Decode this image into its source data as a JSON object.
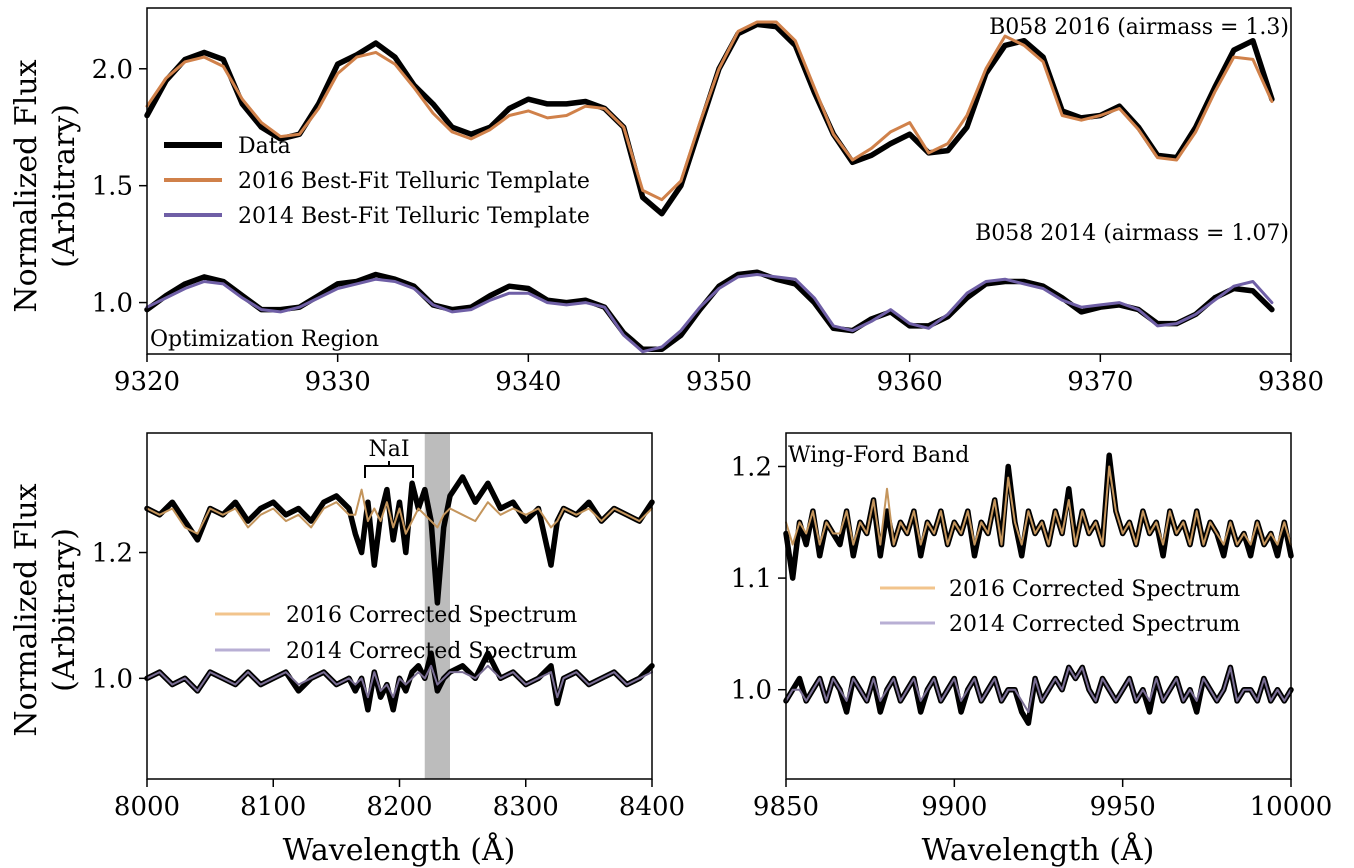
{
  "colors": {
    "data": "#000000",
    "template_2016": "#d0814a",
    "template_2014": "#6f5fa6",
    "corrected_2016": "#c4955c",
    "corrected_2016_legend": "#f2c48c",
    "corrected_2014": "#7a6e94",
    "corrected_2014_legend": "#b8afd4",
    "shade": "#b0b0b0"
  },
  "chart_data": [
    {
      "type": "line",
      "panel": "top",
      "ylabel_line1": "Normalized Flux",
      "ylabel_line2": "(Arbitrary)",
      "xlim": [
        9320,
        9380
      ],
      "ylim": [
        0.78,
        2.26
      ],
      "xticks": [
        "9320",
        "9330",
        "9340",
        "9350",
        "9360",
        "9370",
        "9380"
      ],
      "yticks": [
        "1.0",
        "1.5",
        "2.0"
      ],
      "annotations": {
        "label_2016": "B058 2016 (airmass = 1.3)",
        "label_2014": "B058 2014 (airmass = 1.07)",
        "region": "Optimization Region"
      },
      "legend": {
        "position": "center-left",
        "entries": [
          "Data",
          "2016 Best-Fit Telluric Template",
          "2014 Best-Fit Telluric Template"
        ]
      },
      "x": [
        9320,
        9321,
        9322,
        9323,
        9324,
        9325,
        9326,
        9327,
        9328,
        9329,
        9330,
        9331,
        9332,
        9333,
        9334,
        9335,
        9336,
        9337,
        9338,
        9339,
        9340,
        9341,
        9342,
        9343,
        9344,
        9345,
        9346,
        9347,
        9348,
        9349,
        9350,
        9351,
        9352,
        9353,
        9354,
        9355,
        9356,
        9357,
        9358,
        9359,
        9360,
        9361,
        9362,
        9363,
        9364,
        9365,
        9366,
        9367,
        9368,
        9369,
        9370,
        9371,
        9372,
        9373,
        9374,
        9375,
        9376,
        9377,
        9378,
        9379
      ],
      "series": [
        {
          "name": "Data",
          "role": "data-2016",
          "values": [
            1.8,
            1.95,
            2.04,
            2.07,
            2.04,
            1.85,
            1.75,
            1.7,
            1.72,
            1.85,
            2.02,
            2.06,
            2.11,
            2.05,
            1.93,
            1.85,
            1.75,
            1.72,
            1.75,
            1.83,
            1.87,
            1.85,
            1.85,
            1.86,
            1.83,
            1.75,
            1.45,
            1.38,
            1.5,
            1.75,
            2.0,
            2.15,
            2.19,
            2.18,
            2.1,
            1.9,
            1.72,
            1.6,
            1.63,
            1.68,
            1.72,
            1.64,
            1.65,
            1.75,
            1.98,
            2.1,
            2.12,
            2.05,
            1.82,
            1.79,
            1.8,
            1.84,
            1.75,
            1.63,
            1.62,
            1.75,
            1.92,
            2.08,
            2.12,
            1.87
          ]
        },
        {
          "name": "2016 Best-Fit Telluric Template",
          "role": "template-2016",
          "values": [
            1.84,
            1.96,
            2.03,
            2.05,
            2.01,
            1.87,
            1.77,
            1.71,
            1.72,
            1.83,
            1.98,
            2.05,
            2.07,
            2.02,
            1.92,
            1.81,
            1.73,
            1.7,
            1.74,
            1.8,
            1.82,
            1.79,
            1.8,
            1.84,
            1.83,
            1.75,
            1.48,
            1.44,
            1.52,
            1.77,
            2.0,
            2.16,
            2.2,
            2.2,
            2.12,
            1.92,
            1.72,
            1.61,
            1.66,
            1.73,
            1.77,
            1.64,
            1.68,
            1.8,
            2.0,
            2.14,
            2.1,
            2.03,
            1.8,
            1.78,
            1.8,
            1.83,
            1.74,
            1.62,
            1.61,
            1.73,
            1.9,
            2.05,
            2.04,
            1.86
          ]
        },
        {
          "name": "Data",
          "role": "data-2014",
          "values": [
            0.97,
            1.03,
            1.08,
            1.11,
            1.09,
            1.03,
            0.97,
            0.97,
            0.98,
            1.03,
            1.08,
            1.09,
            1.12,
            1.1,
            1.07,
            0.99,
            0.97,
            0.98,
            1.03,
            1.07,
            1.06,
            1.01,
            1.0,
            1.01,
            0.98,
            0.87,
            0.8,
            0.8,
            0.86,
            0.97,
            1.07,
            1.12,
            1.13,
            1.1,
            1.08,
            1.0,
            0.89,
            0.88,
            0.93,
            0.96,
            0.9,
            0.9,
            0.94,
            1.02,
            1.08,
            1.09,
            1.09,
            1.07,
            1.02,
            0.96,
            0.98,
            0.99,
            0.97,
            0.91,
            0.91,
            0.95,
            1.02,
            1.06,
            1.05,
            0.97
          ]
        },
        {
          "name": "2014 Best-Fit Telluric Template",
          "role": "template-2014",
          "values": [
            0.98,
            1.02,
            1.06,
            1.09,
            1.08,
            1.02,
            0.97,
            0.96,
            0.98,
            1.02,
            1.06,
            1.08,
            1.1,
            1.09,
            1.06,
            0.99,
            0.96,
            0.97,
            1.01,
            1.04,
            1.04,
            1.0,
            0.99,
            1.0,
            0.98,
            0.86,
            0.79,
            0.81,
            0.88,
            0.98,
            1.06,
            1.11,
            1.12,
            1.11,
            1.1,
            1.02,
            0.9,
            0.88,
            0.92,
            0.97,
            0.91,
            0.89,
            0.95,
            1.04,
            1.09,
            1.1,
            1.08,
            1.06,
            1.01,
            0.98,
            0.99,
            1.0,
            0.97,
            0.9,
            0.91,
            0.95,
            1.01,
            1.07,
            1.09,
            1.0
          ]
        }
      ]
    },
    {
      "type": "line",
      "panel": "bottom-left",
      "ylabel_line1": "Normalized Flux",
      "ylabel_line2": "(Arbitrary)",
      "xlabel": "Wavelength (Å)",
      "xlim": [
        8000,
        8400
      ],
      "ylim": [
        0.84,
        1.39
      ],
      "xticks": [
        "8000",
        "8100",
        "8200",
        "8300",
        "8400"
      ],
      "yticks": [
        "1.0",
        "1.2"
      ],
      "annotations": {
        "feature": "NaI"
      },
      "shaded_region": [
        8220,
        8240
      ],
      "legend": {
        "position": "center",
        "entries": [
          "2016 Corrected Spectrum",
          "2014 Corrected Spectrum"
        ]
      },
      "x": [
        8000,
        8010,
        8020,
        8030,
        8040,
        8050,
        8060,
        8070,
        8080,
        8090,
        8100,
        8110,
        8120,
        8130,
        8140,
        8150,
        8160,
        8165,
        8170,
        8175,
        8180,
        8185,
        8190,
        8195,
        8200,
        8205,
        8210,
        8215,
        8220,
        8225,
        8230,
        8235,
        8240,
        8250,
        8260,
        8270,
        8280,
        8290,
        8300,
        8310,
        8320,
        8325,
        8330,
        8340,
        8350,
        8360,
        8370,
        8380,
        8390,
        8400
      ],
      "series": [
        {
          "name": "Data",
          "role": "data-2016",
          "values": [
            1.27,
            1.26,
            1.28,
            1.25,
            1.22,
            1.27,
            1.26,
            1.28,
            1.25,
            1.27,
            1.28,
            1.26,
            1.27,
            1.25,
            1.28,
            1.29,
            1.27,
            1.23,
            1.2,
            1.28,
            1.18,
            1.26,
            1.3,
            1.22,
            1.28,
            1.2,
            1.31,
            1.27,
            1.3,
            1.25,
            1.12,
            1.24,
            1.29,
            1.32,
            1.28,
            1.31,
            1.27,
            1.28,
            1.25,
            1.27,
            1.18,
            1.25,
            1.27,
            1.26,
            1.28,
            1.25,
            1.27,
            1.26,
            1.25,
            1.28
          ]
        },
        {
          "name": "2016 Corrected Spectrum",
          "role": "corrected-2016",
          "values": [
            1.27,
            1.26,
            1.27,
            1.24,
            1.23,
            1.27,
            1.26,
            1.27,
            1.24,
            1.26,
            1.27,
            1.25,
            1.26,
            1.24,
            1.27,
            1.28,
            1.26,
            1.26,
            1.3,
            1.25,
            1.27,
            1.25,
            1.28,
            1.24,
            1.27,
            1.23,
            1.25,
            1.27,
            1.26,
            1.25,
            1.24,
            1.26,
            1.27,
            1.26,
            1.25,
            1.28,
            1.26,
            1.27,
            1.26,
            1.27,
            1.24,
            1.25,
            1.27,
            1.26,
            1.27,
            1.25,
            1.27,
            1.26,
            1.25,
            1.27
          ]
        },
        {
          "name": "Data",
          "role": "data-2014",
          "values": [
            1.0,
            1.01,
            0.99,
            1.0,
            0.98,
            1.01,
            1.0,
            0.99,
            1.01,
            0.99,
            1.0,
            1.01,
            0.98,
            1.0,
            1.01,
            0.99,
            1.0,
            0.98,
            1.0,
            0.95,
            1.01,
            0.97,
            0.99,
            0.95,
            1.0,
            0.98,
            1.01,
            1.02,
            1.0,
            1.04,
            0.98,
            1.0,
            1.01,
            1.02,
            1.0,
            1.04,
            1.0,
            1.01,
            0.99,
            1.0,
            1.02,
            0.96,
            1.0,
            1.01,
            0.99,
            1.0,
            1.01,
            0.99,
            1.0,
            1.02
          ]
        },
        {
          "name": "2014 Corrected Spectrum",
          "role": "corrected-2014",
          "values": [
            1.0,
            1.01,
            0.99,
            1.0,
            0.98,
            1.01,
            1.0,
            0.99,
            1.01,
            0.99,
            1.0,
            1.01,
            0.99,
            1.0,
            1.01,
            0.99,
            1.0,
            0.99,
            1.0,
            0.97,
            1.01,
            0.98,
            0.99,
            0.97,
            1.0,
            0.99,
            1.0,
            1.01,
            1.0,
            1.02,
            0.99,
            1.0,
            1.01,
            1.01,
            1.0,
            1.02,
            1.0,
            1.01,
            0.99,
            1.0,
            1.01,
            0.97,
            1.0,
            1.01,
            0.99,
            1.0,
            1.01,
            0.99,
            1.0,
            1.01
          ]
        }
      ]
    },
    {
      "type": "line",
      "panel": "bottom-right",
      "xlabel": "Wavelength (Å)",
      "xlim": [
        9850,
        10000
      ],
      "ylim": [
        0.92,
        1.23
      ],
      "xticks": [
        "9850",
        "9900",
        "9950",
        "10000"
      ],
      "yticks": [
        "1.0",
        "1.1",
        "1.2"
      ],
      "annotations": {
        "band": "Wing-Ford Band"
      },
      "legend": {
        "position": "center-right",
        "entries": [
          "2016 Corrected Spectrum",
          "2014 Corrected Spectrum"
        ]
      },
      "x": [
        9850,
        9852,
        9854,
        9856,
        9858,
        9860,
        9862,
        9864,
        9866,
        9868,
        9870,
        9872,
        9874,
        9876,
        9878,
        9880,
        9882,
        9884,
        9886,
        9888,
        9890,
        9892,
        9894,
        9896,
        9898,
        9900,
        9902,
        9904,
        9906,
        9908,
        9910,
        9912,
        9914,
        9916,
        9918,
        9920,
        9922,
        9924,
        9926,
        9928,
        9930,
        9932,
        9934,
        9936,
        9938,
        9940,
        9942,
        9944,
        9946,
        9948,
        9950,
        9952,
        9954,
        9956,
        9958,
        9960,
        9962,
        9964,
        9966,
        9968,
        9970,
        9972,
        9974,
        9976,
        9978,
        9980,
        9982,
        9984,
        9986,
        9988,
        9990,
        9992,
        9994,
        9996,
        9998,
        10000
      ],
      "series": [
        {
          "name": "Data",
          "role": "data-2016",
          "values": [
            1.14,
            1.1,
            1.15,
            1.13,
            1.16,
            1.12,
            1.15,
            1.14,
            1.13,
            1.16,
            1.12,
            1.15,
            1.14,
            1.17,
            1.12,
            1.16,
            1.13,
            1.15,
            1.14,
            1.16,
            1.12,
            1.15,
            1.14,
            1.16,
            1.13,
            1.15,
            1.14,
            1.16,
            1.12,
            1.15,
            1.14,
            1.17,
            1.13,
            1.2,
            1.15,
            1.12,
            1.16,
            1.14,
            1.15,
            1.13,
            1.16,
            1.14,
            1.18,
            1.13,
            1.16,
            1.14,
            1.15,
            1.13,
            1.21,
            1.16,
            1.14,
            1.15,
            1.13,
            1.16,
            1.14,
            1.15,
            1.12,
            1.16,
            1.14,
            1.15,
            1.13,
            1.16,
            1.13,
            1.15,
            1.14,
            1.12,
            1.15,
            1.13,
            1.14,
            1.12,
            1.15,
            1.13,
            1.14,
            1.12,
            1.15,
            1.12
          ]
        },
        {
          "name": "2016 Corrected Spectrum",
          "role": "corrected-2016",
          "values": [
            1.15,
            1.13,
            1.15,
            1.14,
            1.16,
            1.13,
            1.15,
            1.14,
            1.14,
            1.16,
            1.13,
            1.15,
            1.14,
            1.17,
            1.13,
            1.18,
            1.13,
            1.15,
            1.14,
            1.16,
            1.13,
            1.15,
            1.14,
            1.16,
            1.13,
            1.15,
            1.14,
            1.16,
            1.13,
            1.15,
            1.14,
            1.17,
            1.13,
            1.19,
            1.15,
            1.13,
            1.16,
            1.14,
            1.15,
            1.13,
            1.16,
            1.14,
            1.17,
            1.13,
            1.16,
            1.14,
            1.15,
            1.13,
            1.2,
            1.16,
            1.14,
            1.15,
            1.13,
            1.16,
            1.14,
            1.15,
            1.13,
            1.16,
            1.14,
            1.15,
            1.13,
            1.16,
            1.13,
            1.15,
            1.14,
            1.13,
            1.15,
            1.13,
            1.14,
            1.13,
            1.15,
            1.13,
            1.14,
            1.13,
            1.15,
            1.13
          ]
        },
        {
          "name": "Data",
          "role": "data-2014",
          "values": [
            0.99,
            1.0,
            1.01,
            0.99,
            1.0,
            1.01,
            0.99,
            1.01,
            1.0,
            0.98,
            1.01,
            1.0,
            0.99,
            1.01,
            0.98,
            1.0,
            1.01,
            0.99,
            1.0,
            1.01,
            0.98,
            1.0,
            1.01,
            0.99,
            1.0,
            1.01,
            0.98,
            1.0,
            1.01,
            0.99,
            1.0,
            1.01,
            0.99,
            1.0,
            1.0,
            0.98,
            0.97,
            1.01,
            0.99,
            1.0,
            1.01,
            1.0,
            1.02,
            1.01,
            1.02,
            1.0,
            0.99,
            1.01,
            1.0,
            0.99,
            1.0,
            1.01,
            0.99,
            1.0,
            0.98,
            1.01,
            0.99,
            1.0,
            1.01,
            0.99,
            1.0,
            0.98,
            1.01,
            1.0,
            0.99,
            1.0,
            1.02,
            0.99,
            1.0,
            1.0,
            0.99,
            1.01,
            0.99,
            1.0,
            0.99,
            1.0
          ]
        },
        {
          "name": "2014 Corrected Spectrum",
          "role": "corrected-2014",
          "values": [
            0.99,
            1.0,
            1.0,
            0.99,
            1.0,
            1.01,
            0.99,
            1.01,
            1.0,
            0.99,
            1.01,
            1.0,
            0.99,
            1.01,
            0.99,
            1.0,
            1.01,
            0.99,
            1.0,
            1.01,
            0.99,
            1.0,
            1.01,
            0.99,
            1.0,
            1.01,
            0.99,
            1.0,
            1.01,
            0.99,
            1.0,
            1.01,
            0.99,
            1.0,
            1.0,
            0.99,
            0.98,
            1.01,
            0.99,
            1.0,
            1.01,
            1.0,
            1.02,
            1.01,
            1.02,
            1.0,
            0.99,
            1.01,
            1.0,
            0.99,
            1.0,
            1.01,
            0.99,
            1.0,
            0.99,
            1.01,
            0.99,
            1.0,
            1.01,
            0.99,
            1.0,
            0.99,
            1.01,
            1.0,
            0.99,
            1.0,
            1.02,
            0.99,
            1.0,
            1.0,
            0.99,
            1.01,
            0.99,
            1.0,
            0.99,
            1.0
          ]
        }
      ]
    }
  ]
}
